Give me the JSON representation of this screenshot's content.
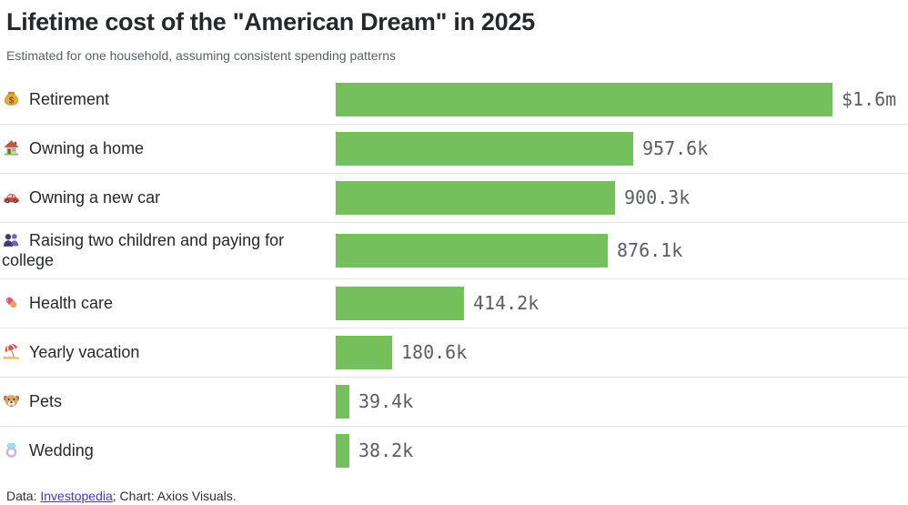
{
  "header": {
    "title": "Lifetime cost of the \"American Dream\" in 2025",
    "subtitle": "Estimated for one household, assuming consistent spending patterns"
  },
  "chart_data": {
    "type": "bar",
    "orientation": "horizontal",
    "title": "Lifetime cost of the \"American Dream\" in 2025",
    "subtitle": "Estimated for one household, assuming consistent spending patterns",
    "bar_color": "#75c05d",
    "value_label_color": "#5b5d61",
    "divider_color": "#e4e5e7",
    "xlim": [
      0,
      1600000
    ],
    "grid": false,
    "value_label_position": "right",
    "categories": [
      "Retirement",
      "Owning a home",
      "Owning a new car",
      "Raising two children and paying for college",
      "Health care",
      "Yearly vacation",
      "Pets",
      "Wedding"
    ],
    "values": [
      1600000,
      957600,
      900300,
      876100,
      414200,
      180600,
      39400,
      38200
    ],
    "rows": [
      {
        "icon": "money-bag",
        "label": "Retirement",
        "value": 1600000,
        "value_display": "$1.6m"
      },
      {
        "icon": "house",
        "label": "Owning a home",
        "value": 957600,
        "value_display": "957.6k"
      },
      {
        "icon": "car",
        "label": "Owning a new car",
        "value": 900300,
        "value_display": "900.3k"
      },
      {
        "icon": "two-people",
        "label": "Raising two children and paying for college",
        "value": 876100,
        "value_display": "876.1k"
      },
      {
        "icon": "pill",
        "label": "Health care",
        "value": 414200,
        "value_display": "414.2k"
      },
      {
        "icon": "beach-umbrella",
        "label": "Yearly vacation",
        "value": 180600,
        "value_display": "180.6k"
      },
      {
        "icon": "dog",
        "label": "Pets",
        "value": 39400,
        "value_display": "39.4k"
      },
      {
        "icon": "ring",
        "label": "Wedding",
        "value": 38200,
        "value_display": "38.2k"
      }
    ]
  },
  "footer": {
    "prefix": "Data: ",
    "link_text": "Investopedia",
    "suffix": "; Chart: Axios Visuals.",
    "link_color": "#4533cf"
  }
}
